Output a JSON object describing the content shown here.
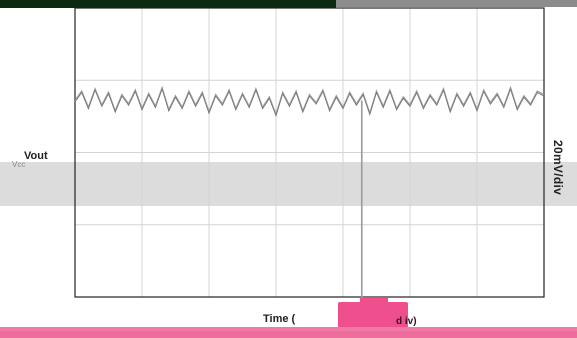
{
  "chart_data": {
    "type": "line",
    "series": [
      {
        "name": "Vout",
        "x": [
          0,
          0.1,
          0.2,
          0.3,
          0.4,
          0.5,
          0.6,
          0.7,
          0.8,
          0.9,
          1.0,
          1.1,
          1.2,
          1.3,
          1.4,
          1.5,
          1.6,
          1.7,
          1.8,
          1.9,
          2.0,
          2.1,
          2.2,
          2.3,
          2.4,
          2.5,
          2.6,
          2.7,
          2.8,
          2.9,
          3.0,
          3.1,
          3.2,
          3.3,
          3.4,
          3.5,
          3.6,
          3.7,
          3.8,
          3.9,
          4.0,
          4.1,
          4.2,
          4.3,
          4.4,
          4.5,
          4.6,
          4.7,
          4.8,
          4.9,
          5.0,
          5.1,
          5.2,
          5.3,
          5.4,
          5.5,
          5.6,
          5.7,
          5.8,
          5.9,
          6.0,
          6.1,
          6.2,
          6.3,
          6.4,
          6.5,
          6.6,
          6.7,
          6.8,
          6.9,
          7.0
        ],
        "values": [
          0.0,
          0.8,
          -0.6,
          1.0,
          -0.4,
          0.7,
          -0.9,
          0.5,
          -0.3,
          0.9,
          -0.7,
          0.6,
          -0.5,
          1.1,
          -0.8,
          0.4,
          -0.6,
          0.8,
          -0.4,
          0.7,
          -1.0,
          0.5,
          -0.3,
          0.9,
          -0.7,
          0.6,
          -0.5,
          1.0,
          -0.6,
          0.3,
          -1.2,
          0.7,
          -0.4,
          0.8,
          -0.9,
          0.5,
          -0.2,
          0.9,
          -0.8,
          0.4,
          -0.6,
          0.7,
          -0.3,
          0.6,
          -1.1,
          0.8,
          -0.5,
          0.9,
          -0.7,
          0.3,
          -0.4,
          0.8,
          -0.6,
          0.5,
          -0.3,
          1.0,
          -0.9,
          0.6,
          -0.4,
          0.7,
          -0.8,
          0.9,
          -0.2,
          0.6,
          -0.5,
          1.1,
          -0.7,
          0.4,
          -0.3,
          0.8,
          0.5
        ]
      }
    ],
    "spike": {
      "x": 4.28,
      "value": -18
    },
    "xlim": [
      0,
      7
    ],
    "ylim": [
      -17,
      8
    ],
    "ylabel": "20mV/div",
    "xlabel": "Time (",
    "xlabel_tail": "d",
    "xlabel_end": "iv)",
    "series_label": "Vout",
    "series_label_ghost": "Vcc",
    "grid": true,
    "colors": {
      "trace": "#9a9a9a",
      "trace_dark": "#6e6e6e",
      "grid": "#d4d4d4",
      "frame": "#222222"
    }
  }
}
